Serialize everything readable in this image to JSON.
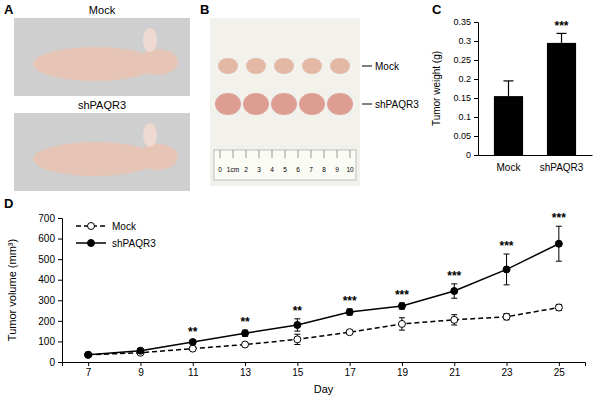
{
  "photos": {
    "A": {
      "panel": "A",
      "labels": [
        "Mock",
        "shPAQR3"
      ]
    },
    "B": {
      "panel": "B",
      "labels": [
        "Mock",
        "shPAQR3"
      ],
      "ruler": [
        "0",
        "1cm",
        "2",
        "3",
        "4",
        "5",
        "6",
        "7",
        "8",
        "9",
        "10"
      ]
    }
  },
  "chart_data": [
    {
      "panel": "C",
      "type": "bar",
      "categories": [
        "Mock",
        "shPAQR3"
      ],
      "values": [
        0.155,
        0.295
      ],
      "errors": [
        0.04,
        0.025
      ],
      "color": "#000000",
      "y_label": "Tumor weight (g)",
      "ylim": [
        0,
        0.35
      ],
      "yticks": [
        0,
        0.05,
        0.1,
        0.15,
        0.2,
        0.25,
        0.3,
        0.35
      ],
      "annotations": [
        {
          "index": 1,
          "text": "***"
        }
      ]
    },
    {
      "panel": "D",
      "type": "line",
      "x": [
        7,
        9,
        11,
        13,
        15,
        17,
        19,
        21,
        23,
        25
      ],
      "xlim": [
        6,
        26
      ],
      "xticks": [
        7,
        9,
        11,
        13,
        15,
        17,
        19,
        21,
        23,
        25
      ],
      "x_label": "Day",
      "y_label": "Tumor volume (mm³)",
      "ylim": [
        0,
        700
      ],
      "yticks": [
        0,
        100,
        200,
        300,
        400,
        500,
        600,
        700
      ],
      "legend": "top-left",
      "series": [
        {
          "name": "Mock",
          "color": "#000000",
          "line_style": "dashed",
          "marker": "open-circle",
          "values": [
            35,
            45,
            65,
            85,
            110,
            145,
            185,
            205,
            220,
            265
          ],
          "errors": [
            5,
            5,
            8,
            10,
            25,
            10,
            30,
            25,
            15,
            15
          ]
        },
        {
          "name": "shPAQR3",
          "color": "#000000",
          "line_style": "solid",
          "marker": "filled-circle",
          "values": [
            35,
            55,
            97,
            140,
            180,
            243,
            272,
            345,
            450,
            575
          ],
          "errors": [
            5,
            8,
            10,
            15,
            30,
            15,
            15,
            35,
            75,
            85
          ]
        }
      ],
      "annotations": [
        {
          "x": 11,
          "text": "**"
        },
        {
          "x": 13,
          "text": "**"
        },
        {
          "x": 15,
          "text": "**"
        },
        {
          "x": 17,
          "text": "***"
        },
        {
          "x": 19,
          "text": "***"
        },
        {
          "x": 21,
          "text": "***"
        },
        {
          "x": 23,
          "text": "***"
        },
        {
          "x": 25,
          "text": "***"
        }
      ]
    }
  ]
}
